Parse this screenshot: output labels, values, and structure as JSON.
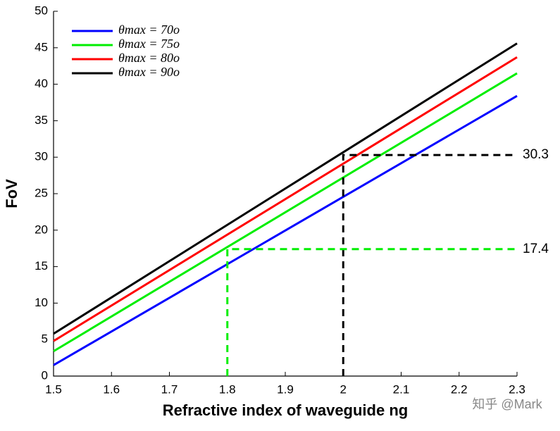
{
  "chart_data": {
    "type": "line",
    "xlabel": "Refractive index of waveguide ng",
    "ylabel": "FoV",
    "x": [
      1.5,
      2.3
    ],
    "series": [
      {
        "name": "θmax = 70o",
        "color": "#0000ff",
        "values": [
          1.5,
          38.4
        ]
      },
      {
        "name": "θmax = 75o",
        "color": "#00ee00",
        "values": [
          3.4,
          41.5
        ]
      },
      {
        "name": "θmax = 80o",
        "color": "#ff0000",
        "values": [
          4.8,
          43.7
        ]
      },
      {
        "name": "θmax = 90o",
        "color": "#000000",
        "values": [
          5.8,
          45.6
        ]
      }
    ],
    "annotations": [
      {
        "x": 2,
        "y": 30.3,
        "color": "#000000"
      },
      {
        "x": 1.8,
        "y": 17.4,
        "color": "#00ee00"
      }
    ],
    "xlim": [
      1.5,
      2.3
    ],
    "xticks": [
      1.5,
      1.6,
      1.7,
      1.8,
      1.9,
      2,
      2.1,
      2.2,
      2.3
    ],
    "ylim": [
      0,
      50
    ],
    "yticks": [
      0,
      5,
      10,
      15,
      20,
      25,
      30,
      35,
      40,
      45,
      50
    ],
    "legend": "upper-left",
    "watermark": "知乎 @Mark"
  }
}
